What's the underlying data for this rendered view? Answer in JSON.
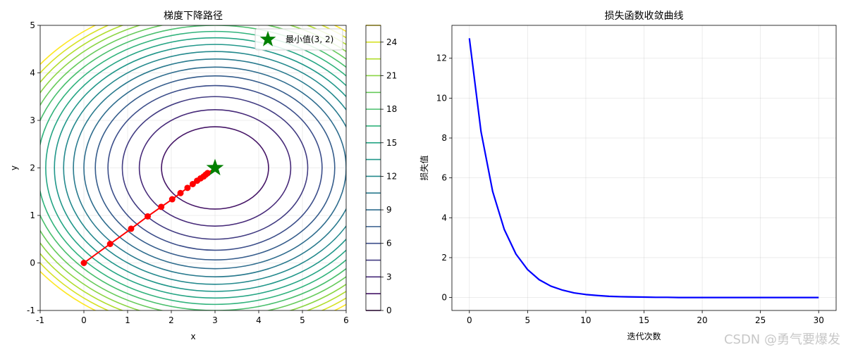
{
  "chart_data": [
    {
      "type": "contour",
      "title": "梯度下降路径",
      "xlabel": "x",
      "ylabel": "y",
      "xlim": [
        -1,
        6
      ],
      "ylim": [
        -1,
        5
      ],
      "x_ticks": [
        "-1",
        "0",
        "1",
        "2",
        "3",
        "4",
        "5",
        "6"
      ],
      "y_ticks": [
        "-1",
        "0",
        "1",
        "2",
        "3",
        "4",
        "5"
      ],
      "grid": true,
      "contour_center": [
        3,
        2
      ],
      "contour_levels": [
        0,
        1.5,
        3,
        4.5,
        6,
        7.5,
        9,
        10.5,
        12,
        13.5,
        15,
        16.5,
        18,
        19.5,
        21,
        22.5,
        24,
        25.5
      ],
      "colorbar_ticks": [
        "0",
        "3",
        "6",
        "9",
        "12",
        "15",
        "18",
        "21",
        "24"
      ],
      "colorbar_range": [
        0,
        25.5
      ],
      "path": {
        "color": "#ff0000",
        "x": [
          0,
          0.6,
          1.08,
          1.46,
          1.77,
          2.02,
          2.21,
          2.37,
          2.49,
          2.59,
          2.67,
          2.74,
          2.79,
          2.83
        ],
        "y": [
          0,
          0.4,
          0.72,
          0.98,
          1.18,
          1.34,
          1.47,
          1.58,
          1.66,
          1.73,
          1.78,
          1.82,
          1.86,
          1.89
        ]
      },
      "minimum": {
        "x": 3,
        "y": 2,
        "color": "#008000"
      },
      "legend": {
        "label": "最小值(3, 2)",
        "placement": "upper right"
      }
    },
    {
      "type": "line",
      "title": "损失函数收敛曲线",
      "xlabel": "迭代次数",
      "ylabel": "损失值",
      "xlim": [
        -1.5,
        31.5
      ],
      "ylim": [
        -0.65,
        13.65
      ],
      "x_ticks": [
        0,
        5,
        10,
        15,
        20,
        25,
        30
      ],
      "y_ticks": [
        0,
        2,
        4,
        6,
        8,
        10,
        12
      ],
      "grid": true,
      "series": [
        {
          "color": "#0000ff",
          "x": [
            0,
            1,
            2,
            3,
            4,
            5,
            6,
            7,
            8,
            9,
            10,
            11,
            12,
            13,
            14,
            15,
            16,
            17,
            18,
            19,
            20,
            21,
            22,
            23,
            24,
            25,
            26,
            27,
            28,
            29,
            30
          ],
          "values": [
            13.0,
            8.32,
            5.32,
            3.41,
            2.18,
            1.4,
            0.89,
            0.57,
            0.37,
            0.23,
            0.15,
            0.1,
            0.06,
            0.04,
            0.03,
            0.02,
            0.01,
            0.01,
            0.0,
            0.0,
            0.0,
            0.0,
            0.0,
            0.0,
            0.0,
            0.0,
            0.0,
            0.0,
            0.0,
            0.0,
            0.0
          ]
        }
      ]
    }
  ],
  "watermark": "CSDN @勇气要爆发"
}
